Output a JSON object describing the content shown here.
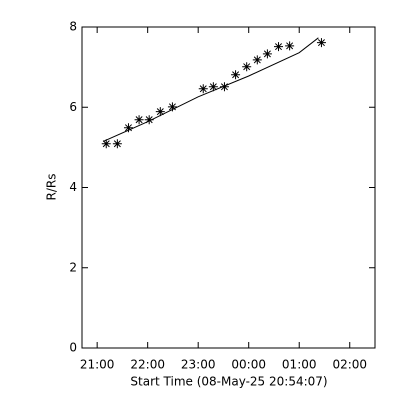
{
  "chart_data": {
    "type": "line-scatter",
    "y_label": "R/Rs",
    "x_label": "Start Time (08-May-25 20:54:07)",
    "xlim": [
      20.7,
      26.5
    ],
    "ylim": [
      0,
      8
    ],
    "xticks": [
      {
        "value": 21,
        "label": "21:00"
      },
      {
        "value": 22,
        "label": "22:00"
      },
      {
        "value": 23,
        "label": "23:00"
      },
      {
        "value": 24,
        "label": "00:00"
      },
      {
        "value": 25,
        "label": "01:00"
      },
      {
        "value": 26,
        "label": "02:00"
      }
    ],
    "yticks": [
      0,
      2,
      4,
      6,
      8
    ],
    "color": "#000000",
    "series": [
      {
        "kind": "line",
        "x": [
          21.12,
          22.0,
          23.0,
          24.0,
          25.0,
          25.38
        ],
        "values": [
          5.15,
          5.64,
          6.26,
          6.78,
          7.36,
          7.73
        ]
      },
      {
        "kind": "scatter",
        "marker": "asterisk",
        "x": [
          21.18,
          21.4,
          21.62,
          21.83,
          22.03,
          22.25,
          22.49,
          23.1,
          23.3,
          23.52,
          23.74,
          23.96,
          24.17,
          24.37,
          24.59,
          24.81,
          25.44
        ],
        "values": [
          5.09,
          5.09,
          5.49,
          5.69,
          5.69,
          5.89,
          6.01,
          6.46,
          6.51,
          6.51,
          6.81,
          7.01,
          7.18,
          7.33,
          7.51,
          7.53,
          7.61
        ]
      }
    ]
  }
}
